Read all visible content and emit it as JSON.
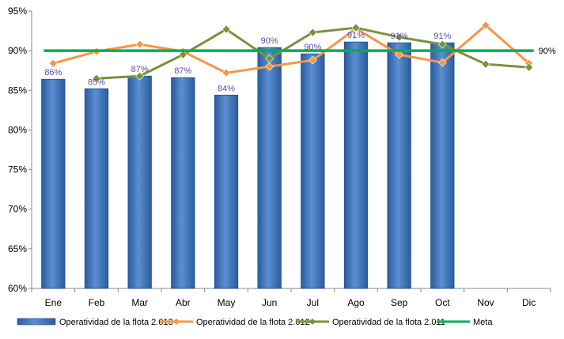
{
  "chart_data": {
    "type": "bar",
    "categories": [
      "Ene",
      "Feb",
      "Mar",
      "Abr",
      "May",
      "Jun",
      "Jul",
      "Ago",
      "Sep",
      "Oct",
      "Nov",
      "Dic"
    ],
    "ylim": [
      60,
      95
    ],
    "ytick_step": 5,
    "ytick_format": "percent",
    "grid": false,
    "legend_position": "bottom",
    "series": [
      {
        "name": "Operatividad de la flota 2.013",
        "kind": "bar",
        "color": "#3a6fb4",
        "values": [
          86.4,
          85.2,
          86.8,
          86.6,
          84.4,
          90.4,
          89.6,
          91.1,
          91.0,
          91.0,
          null,
          null
        ],
        "labels": [
          "86%",
          "85%",
          "87%",
          "87%",
          "84%",
          "90%",
          "90%",
          "91%",
          "91%",
          "91%",
          "",
          ""
        ]
      },
      {
        "name": "Operatividad de la flota 2.012",
        "kind": "line",
        "marker": "diamond",
        "color": "#f79646",
        "values": [
          88.4,
          89.9,
          90.8,
          89.9,
          87.2,
          88.0,
          88.8,
          92.8,
          89.5,
          88.5,
          93.2,
          88.4
        ]
      },
      {
        "name": "Operatividad de la flota 2.011",
        "kind": "line",
        "marker": "diamond",
        "color": "#77933c",
        "values": [
          null,
          86.5,
          86.8,
          89.5,
          92.7,
          89.0,
          92.3,
          92.9,
          91.7,
          90.8,
          88.3,
          87.9
        ]
      },
      {
        "name": "Meta",
        "kind": "line",
        "marker": "none",
        "color": "#00b050",
        "values": [
          90,
          90,
          90,
          90,
          90,
          90,
          90,
          90,
          90,
          90,
          90,
          90
        ],
        "end_label": "90%"
      }
    ]
  }
}
